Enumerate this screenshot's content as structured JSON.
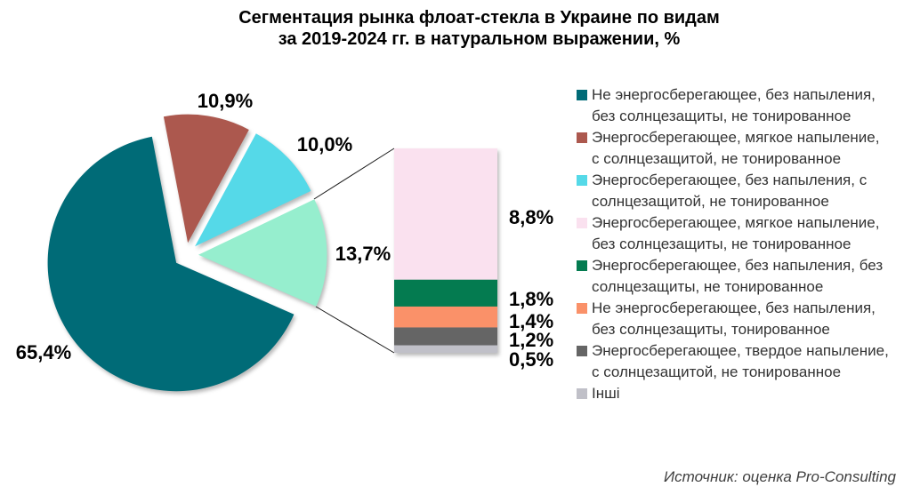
{
  "title": {
    "line1": "Сегментация рынка флоат-стекла в Украине по видам",
    "line2": "за 2019-2024 гг. в натуральном выражении, %"
  },
  "source": "Источник: оценка Pro-Consulting",
  "chart_data": {
    "type": "pie",
    "subtype": "bar-of-pie",
    "title": "Сегментация рынка флоат-стекла в Украине по видам за 2019-2024 гг. в натуральном выражении, %",
    "unit": "%",
    "legend_position": "right",
    "pie_slices": [
      {
        "label": "Не энергосберегающее, без напыления,\nбез солнцезащиты, не тонированное",
        "value": 65.4,
        "display": "65,4%",
        "color": "#006B77",
        "in_legend": true
      },
      {
        "label": "Энергосберегающее, мягкое напыление,\nс солнцезащитой, не тонированное",
        "value": 10.9,
        "display": "10,9%",
        "color": "#AC584E",
        "in_legend": true
      },
      {
        "label": "Энергосберегающее, без напыления, с\nсолнцезащитой, не тонированное",
        "value": 10.0,
        "display": "10,0%",
        "color": "#55D9E8",
        "in_legend": true
      },
      {
        "label": "",
        "value": 13.7,
        "display": "13,7%",
        "color": "#96EECE",
        "in_legend": false
      }
    ],
    "bar_segments": [
      {
        "label": "Энергосберегающее, мягкое напыление,\nбез солнцезащиты, не тонированное",
        "value": 8.8,
        "display": "8,8%",
        "color": "#FAE1EF"
      },
      {
        "label": "Энергосберегающее, без напыления, без\nсолнцезащиты, не тонированное",
        "value": 1.8,
        "display": "1,8%",
        "color": "#047B50"
      },
      {
        "label": "Не энергосберегающее, без напыления,\nбез солнцезащиты, тонированное",
        "value": 1.4,
        "display": "1,4%",
        "color": "#FA9169"
      },
      {
        "label": "Энергосберегающее, твердое напыление,\nс солнцезащитой, не тонированное",
        "value": 1.2,
        "display": "1,2%",
        "color": "#656565"
      },
      {
        "label": "Інші",
        "value": 0.5,
        "display": "0,5%",
        "color": "#C0C0C8"
      }
    ]
  }
}
